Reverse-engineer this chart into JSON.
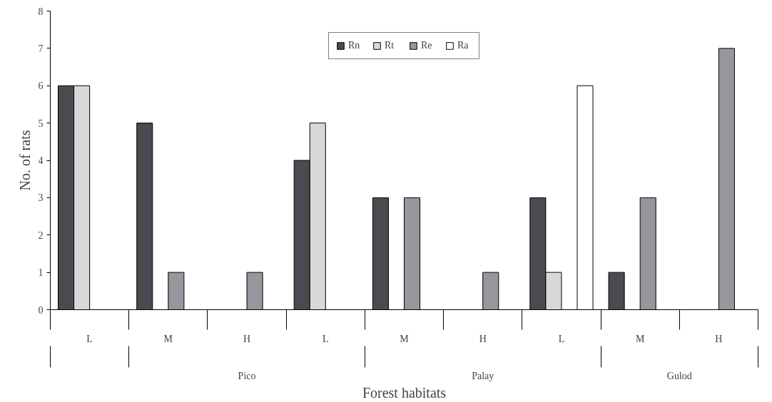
{
  "chart_data": {
    "type": "bar",
    "xlabel": "Forest habitats",
    "ylabel": "No. of rats",
    "categories": [
      "L",
      "M",
      "H",
      "L",
      "M",
      "H",
      "L",
      "M",
      "H"
    ],
    "series": [
      {
        "name": "Rn",
        "color": "#4a4a50",
        "values": [
          6,
          5,
          null,
          4,
          3,
          null,
          3,
          1,
          null
        ]
      },
      {
        "name": "Rt",
        "color": "#d8d8d8",
        "values": [
          6,
          null,
          null,
          5,
          null,
          null,
          1,
          null,
          null
        ]
      },
      {
        "name": "Re",
        "color": "#96969c",
        "values": [
          null,
          1,
          1,
          null,
          3,
          1,
          null,
          3,
          7
        ]
      },
      {
        "name": "Ra",
        "color": "#ffffff",
        "values": [
          null,
          null,
          null,
          null,
          null,
          null,
          6,
          null,
          null
        ]
      }
    ],
    "annotations": [
      "Pico",
      "Palay",
      "Gulod"
    ],
    "ylim": [
      0,
      8
    ],
    "yticks": [
      0,
      1,
      2,
      3,
      4,
      5,
      6,
      7,
      8
    ],
    "grid": false,
    "legend": "top"
  }
}
